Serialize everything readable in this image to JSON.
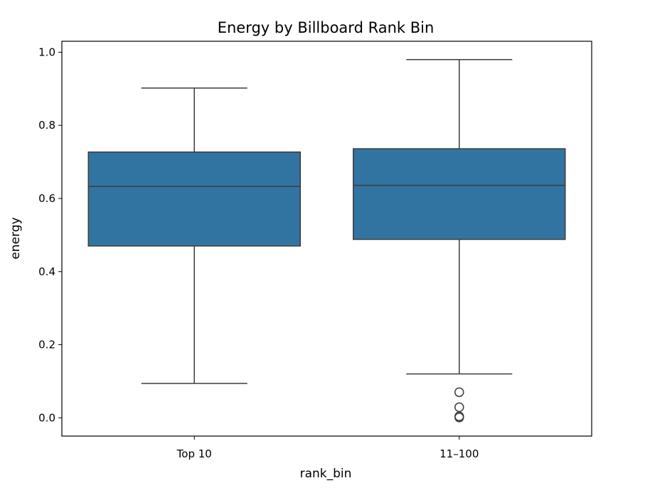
{
  "chart_data": {
    "type": "box",
    "title": "Energy by Billboard Rank Bin",
    "xlabel": "rank_bin",
    "ylabel": "energy",
    "ylim": [
      -0.05,
      1.03
    ],
    "yticks": [
      "0.0",
      "0.2",
      "0.4",
      "0.6",
      "0.8",
      "1.0"
    ],
    "categories": [
      "Top 10",
      "11–100"
    ],
    "boxes": [
      {
        "category": "Top 10",
        "whisker_low": 0.094,
        "q1": 0.47,
        "median": 0.633,
        "q3": 0.727,
        "whisker_high": 0.902,
        "outliers": []
      },
      {
        "category": "11–100",
        "whisker_low": 0.12,
        "q1": 0.488,
        "median": 0.636,
        "q3": 0.736,
        "whisker_high": 0.98,
        "outliers": [
          0.07,
          0.029,
          0.004,
          0.001
        ]
      }
    ],
    "box_color": "#3274a1",
    "grid": false
  }
}
